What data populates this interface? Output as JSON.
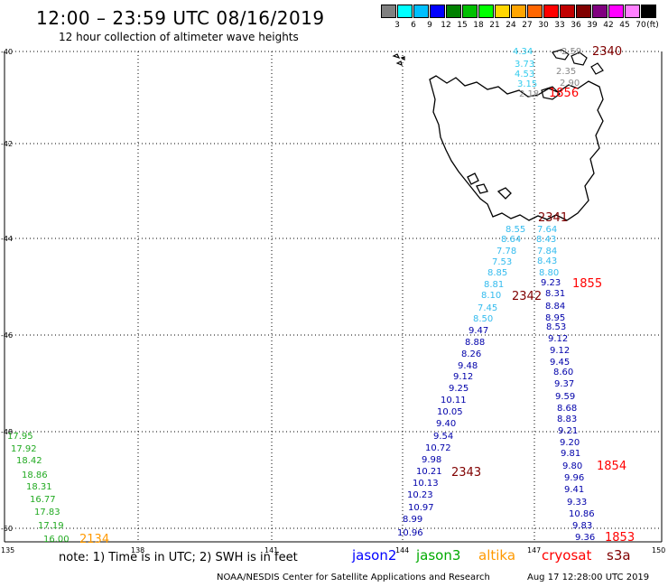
{
  "header": {
    "title": "12:00 – 23:59 UTC 08/16/2019",
    "subtitle": "12 hour collection of altimeter wave heights"
  },
  "legend": {
    "unit": "(ft)",
    "colors": [
      "#808080",
      "#00ffff",
      "#00c0ff",
      "#0000ff",
      "#008000",
      "#00c000",
      "#00ff00",
      "#ffd700",
      "#ffa500",
      "#ff6600",
      "#ff0000",
      "#c00000",
      "#800000",
      "#800080",
      "#ff00ff",
      "#ff80ff",
      "#000000"
    ],
    "labels": [
      "3",
      "6",
      "9",
      "12",
      "15",
      "18",
      "21",
      "24",
      "27",
      "30",
      "33",
      "36",
      "39",
      "42",
      "45",
      "70"
    ]
  },
  "axes": {
    "lat_labels": [
      "-40",
      "-42",
      "-44",
      "-46",
      "-48",
      "-50"
    ],
    "lon_labels": [
      "135",
      "138",
      "141",
      "144",
      "147",
      "150"
    ]
  },
  "tracks": [
    {
      "satellite": "sentinel3a",
      "color": "#33ccee",
      "values": [
        "4.34",
        "3.73",
        "4.53",
        "3.15"
      ]
    },
    {
      "satellite": "cryosat_gray",
      "color": "#888888",
      "values": [
        "2.59",
        "2.35",
        "2.90",
        "2.18"
      ]
    },
    {
      "satellite": "track_2341_2342",
      "color": "#33bbee",
      "values": [
        "8.55",
        "8.64",
        "7.78",
        "7.53",
        "8.85",
        "8.81",
        "8.10",
        "7.45",
        "8.50"
      ]
    },
    {
      "satellite": "track_2341_2342_dark",
      "color": "#0000aa",
      "values": [
        "9.47",
        "8.88",
        "8.26",
        "9.48",
        "9.12",
        "9.25",
        "10.11",
        "10.05",
        "9.40",
        "9.54",
        "10.72",
        "9.98",
        "10.21",
        "10.13",
        "10.23",
        "10.97",
        "8.99",
        "10.96"
      ]
    },
    {
      "satellite": "track_1855",
      "color": "#33bbee",
      "values": [
        "7.64",
        "8.43",
        "7.84",
        "8.43",
        "8.80"
      ]
    },
    {
      "satellite": "track_1855_dark",
      "color": "#0000aa",
      "values": [
        "9.23",
        "8.31",
        "8.84",
        "8.95",
        "8.53",
        "9.12",
        "9.12",
        "9.45",
        "8.60",
        "9.37",
        "9.59",
        "8.68",
        "8.83",
        "9.21",
        "9.20",
        "9.81",
        "9.80",
        "9.96",
        "9.41",
        "9.33",
        "10.86",
        "9.83",
        "9.36"
      ]
    },
    {
      "satellite": "jason3",
      "color": "#22aa22",
      "values": [
        "17.95",
        "17.92",
        "18.42",
        "18.86",
        "18.31",
        "16.77",
        "17.83",
        "17.19",
        "16.00"
      ]
    }
  ],
  "time_labels": [
    {
      "text": "2340",
      "color": "#800000"
    },
    {
      "text": "1856",
      "color": "#ff0000"
    },
    {
      "text": "2341",
      "color": "#800000"
    },
    {
      "text": "1855",
      "color": "#ff0000"
    },
    {
      "text": "2342",
      "color": "#800000"
    },
    {
      "text": "2343",
      "color": "#800000"
    },
    {
      "text": "1854",
      "color": "#ff0000"
    },
    {
      "text": "1853",
      "color": "#ff0000"
    },
    {
      "text": "2134",
      "color": "#ff9900"
    }
  ],
  "footer": {
    "note": "note:  1) Time is in UTC; 2) SWH is in feet",
    "satellites": [
      {
        "name": "jason2",
        "color": "#0000ff"
      },
      {
        "name": "jason3",
        "color": "#00aa00"
      },
      {
        "name": "altika",
        "color": "#ff9900"
      },
      {
        "name": "cryosat",
        "color": "#ff0000"
      },
      {
        "name": "s3a",
        "color": "#800000"
      }
    ],
    "credit": "NOAA/NESDIS Center for Satellite Applications and Research",
    "timestamp": "Aug 17 12:28:00 UTC 2019"
  }
}
